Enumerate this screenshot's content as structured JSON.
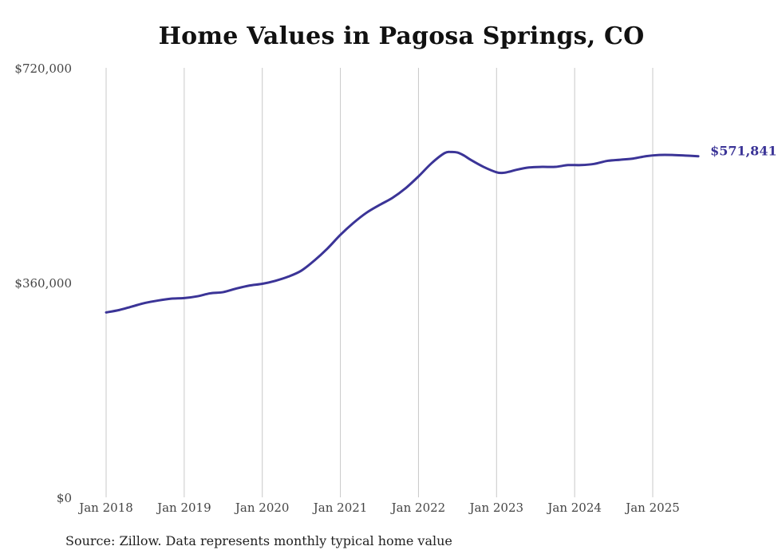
{
  "chart_data": {
    "type": "line",
    "title": "Home Values in Pagosa Springs, CO",
    "xlabel": "",
    "ylabel": "",
    "ylim": [
      0,
      720000
    ],
    "yticks": [
      {
        "value": 0,
        "label": "$0"
      },
      {
        "value": 360000,
        "label": "$360,000"
      },
      {
        "value": 720000,
        "label": "$720,000"
      }
    ],
    "xlim": [
      "2018-01",
      "2025-08"
    ],
    "xticks": [
      {
        "x": "2018-01",
        "label": "Jan 2018"
      },
      {
        "x": "2019-01",
        "label": "Jan 2019"
      },
      {
        "x": "2020-01",
        "label": "Jan 2020"
      },
      {
        "x": "2021-01",
        "label": "Jan 2021"
      },
      {
        "x": "2022-01",
        "label": "Jan 2022"
      },
      {
        "x": "2023-01",
        "label": "Jan 2023"
      },
      {
        "x": "2024-01",
        "label": "Jan 2024"
      },
      {
        "x": "2025-01",
        "label": "Jan 2025"
      }
    ],
    "grid": {
      "vertical": true,
      "horizontal": false
    },
    "line_color": "#3b3497",
    "end_label": "$571,841",
    "series": [
      {
        "x": [
          "2018-01",
          "2018-03",
          "2018-05",
          "2018-07",
          "2018-09",
          "2018-11",
          "2019-01",
          "2019-03",
          "2019-05",
          "2019-07",
          "2019-09",
          "2019-11",
          "2020-01",
          "2020-03",
          "2020-05",
          "2020-07",
          "2020-09",
          "2020-11",
          "2021-01",
          "2021-03",
          "2021-05",
          "2021-07",
          "2021-09",
          "2021-11",
          "2022-01",
          "2022-03",
          "2022-05",
          "2022-06",
          "2022-07",
          "2022-08",
          "2022-09",
          "2022-11",
          "2023-01",
          "2023-02",
          "2023-03",
          "2023-04",
          "2023-06",
          "2023-08",
          "2023-10",
          "2023-12",
          "2024-02",
          "2024-04",
          "2024-06",
          "2024-08",
          "2024-10",
          "2024-12",
          "2025-02",
          "2025-04",
          "2025-06",
          "2025-08"
        ],
        "values": [
          310000,
          314000,
          320000,
          326000,
          330000,
          333000,
          334000,
          337000,
          342000,
          344000,
          350000,
          355000,
          358000,
          363000,
          370000,
          380000,
          397000,
          417000,
          440000,
          460000,
          477000,
          490000,
          502000,
          518000,
          538000,
          560000,
          577000,
          579000,
          578000,
          573000,
          566000,
          554000,
          545000,
          544000,
          546000,
          549000,
          553000,
          554000,
          554000,
          557000,
          557000,
          559000,
          564000,
          566000,
          568000,
          572000,
          574000,
          574000,
          573000,
          571841
        ]
      }
    ]
  },
  "source_note": "Source: Zillow. Data represents monthly typical home value"
}
